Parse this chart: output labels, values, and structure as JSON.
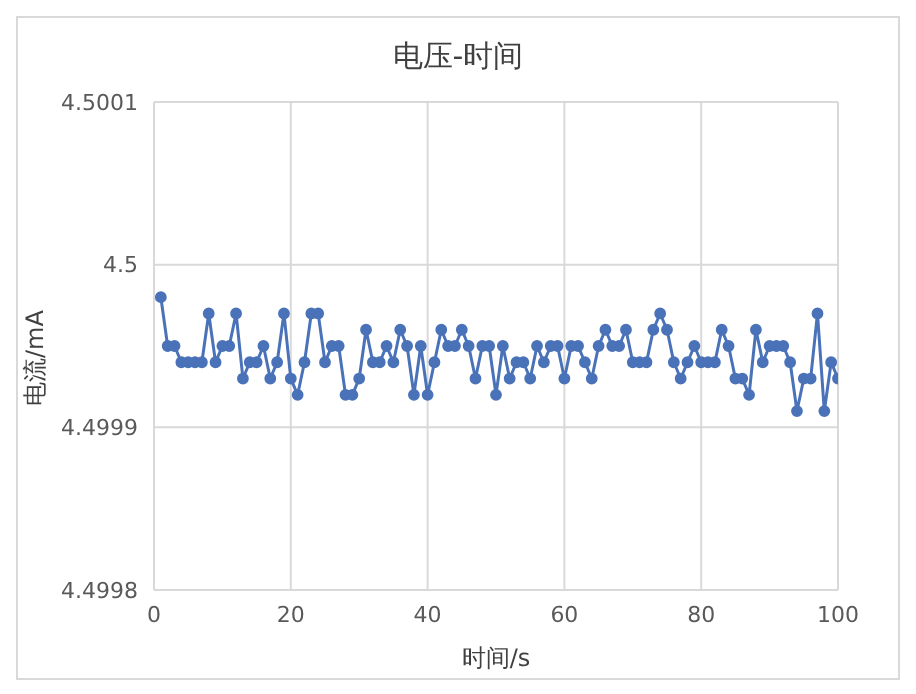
{
  "chart_data": {
    "type": "line",
    "title": "电压-时间",
    "xlabel": "时间/s",
    "ylabel": "电流/mA",
    "x": [
      1,
      2,
      3,
      4,
      5,
      6,
      7,
      8,
      9,
      10,
      11,
      12,
      13,
      14,
      15,
      16,
      17,
      18,
      19,
      20,
      21,
      22,
      23,
      24,
      25,
      26,
      27,
      28,
      29,
      30,
      31,
      32,
      33,
      34,
      35,
      36,
      37,
      38,
      39,
      40,
      41,
      42,
      43,
      44,
      45,
      46,
      47,
      48,
      49,
      50,
      51,
      52,
      53,
      54,
      55,
      56,
      57,
      58,
      59,
      60,
      61,
      62,
      63,
      64,
      65,
      66,
      67,
      68,
      69,
      70,
      71,
      72,
      73,
      74,
      75,
      76,
      77,
      78,
      79,
      80,
      81,
      82,
      83,
      84,
      85,
      86,
      87,
      88,
      89,
      90,
      91,
      92,
      93,
      94,
      95,
      96,
      97,
      98,
      99,
      100
    ],
    "series": [
      {
        "color": "#4a72b8",
        "values": [
          4.49998,
          4.49995,
          4.49995,
          4.49994,
          4.49994,
          4.49994,
          4.49994,
          4.49997,
          4.49994,
          4.49995,
          4.49995,
          4.49997,
          4.49993,
          4.49994,
          4.49994,
          4.49995,
          4.49993,
          4.49994,
          4.49997,
          4.49993,
          4.49992,
          4.49994,
          4.49997,
          4.49997,
          4.49994,
          4.49995,
          4.49995,
          4.49992,
          4.49992,
          4.49993,
          4.49996,
          4.49994,
          4.49994,
          4.49995,
          4.49994,
          4.49996,
          4.49995,
          4.49992,
          4.49995,
          4.49992,
          4.49994,
          4.49996,
          4.49995,
          4.49995,
          4.49996,
          4.49995,
          4.49993,
          4.49995,
          4.49995,
          4.49992,
          4.49995,
          4.49993,
          4.49994,
          4.49994,
          4.49993,
          4.49995,
          4.49994,
          4.49995,
          4.49995,
          4.49993,
          4.49995,
          4.49995,
          4.49994,
          4.49993,
          4.49995,
          4.49996,
          4.49995,
          4.49995,
          4.49996,
          4.49994,
          4.49994,
          4.49994,
          4.49996,
          4.49997,
          4.49996,
          4.49994,
          4.49993,
          4.49994,
          4.49995,
          4.49994,
          4.49994,
          4.49994,
          4.49996,
          4.49995,
          4.49993,
          4.49993,
          4.49992,
          4.49996,
          4.49994,
          4.49995,
          4.49995,
          4.49995,
          4.49994,
          4.49991,
          4.49993,
          4.49993,
          4.49997,
          4.49991,
          4.49994,
          4.49993
        ]
      }
    ],
    "xlim": [
      0,
      100
    ],
    "xticks": [
      0,
      20,
      40,
      60,
      80,
      100
    ],
    "ylim": [
      4.4998,
      4.5001
    ],
    "yticks": [
      4.4998,
      4.4999,
      4.5,
      4.5001
    ],
    "grid": true,
    "legend": false,
    "marker": "circle",
    "line_style": "solid"
  }
}
